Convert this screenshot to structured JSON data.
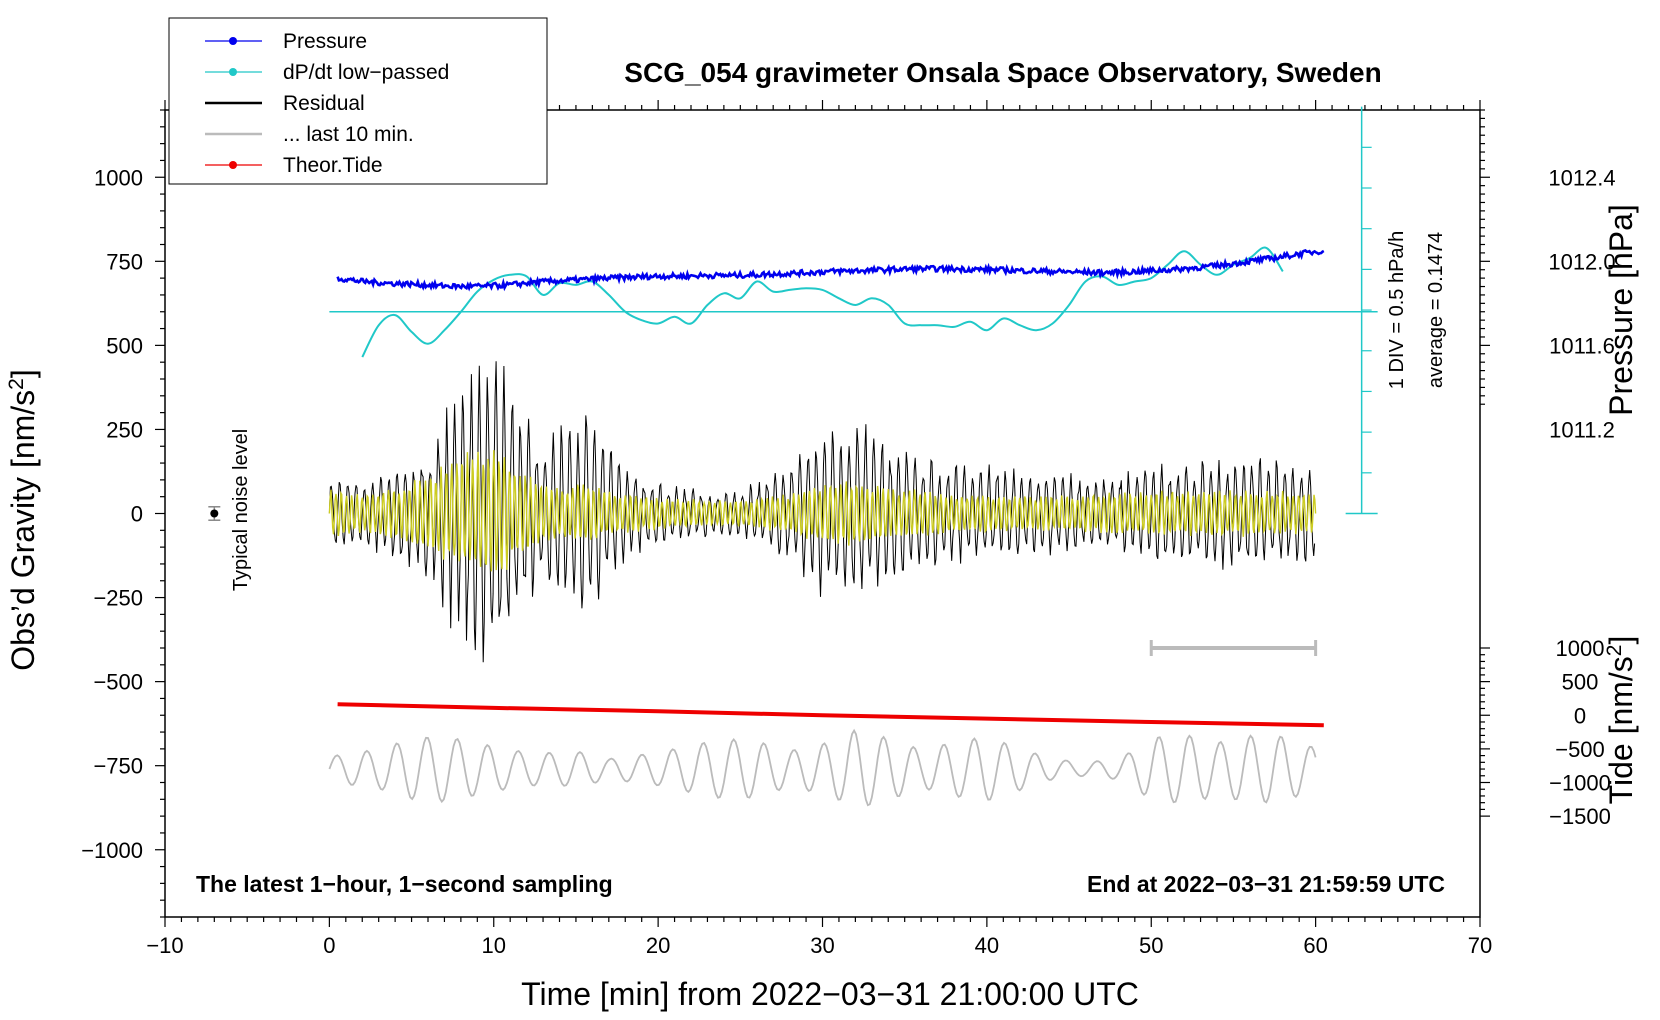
{
  "chart_data": {
    "type": "line",
    "title": "SCG_054 gravimeter Onsala Space Observatory, Sweden",
    "xlabel": "Time [min] from 2022−03−31 21:00:00 UTC",
    "ylabel_left": "Obs’d Gravity [nm/s",
    "ylabel_left_sup": "2",
    "ylabel_left_end": "]",
    "ylabel_right_pressure": "Pressure [hPa]",
    "ylabel_right_tide": "Tide [nm/s",
    "ylabel_right_tide_sup": "2",
    "ylabel_right_tide_end": "]",
    "xlim": [
      -10,
      70
    ],
    "ylim_left": [
      -1200,
      1200
    ],
    "x_ticks": [
      {
        "v": -10,
        "label": "−10"
      },
      {
        "v": 0,
        "label": "0"
      },
      {
        "v": 10,
        "label": "10"
      },
      {
        "v": 20,
        "label": "20"
      },
      {
        "v": 30,
        "label": "30"
      },
      {
        "v": 40,
        "label": "40"
      },
      {
        "v": 50,
        "label": "50"
      },
      {
        "v": 60,
        "label": "60"
      },
      {
        "v": 70,
        "label": "70"
      }
    ],
    "y_left_ticks": [
      {
        "v": 1000,
        "label": "1000"
      },
      {
        "v": 750,
        "label": "750"
      },
      {
        "v": 500,
        "label": "500"
      },
      {
        "v": 250,
        "label": "250"
      },
      {
        "v": 0,
        "label": "0"
      },
      {
        "v": -250,
        "label": "−250"
      },
      {
        "v": -500,
        "label": "−500"
      },
      {
        "v": -750,
        "label": "−750"
      },
      {
        "v": -1000,
        "label": "−1000"
      }
    ],
    "pressure_axis": {
      "offset_gravity": 750,
      "offset_pressure": 1012.0,
      "gravity_per_hpa": 625,
      "range_gravity": [
        320,
        1200
      ],
      "ticks": [
        {
          "v": 1012.4,
          "label": "1012.4"
        },
        {
          "v": 1012.0,
          "label": "1012.0"
        },
        {
          "v": 1011.6,
          "label": "1011.6"
        },
        {
          "v": 1011.2,
          "label": "1011.2"
        }
      ]
    },
    "tide_axis": {
      "offset_gravity": -600,
      "gravity_per_nms2": 0.2,
      "range_gravity": [
        -1200,
        200
      ],
      "ticks": [
        {
          "v": 1000,
          "label": "1000"
        },
        {
          "v": 500,
          "label": "500"
        },
        {
          "v": 0,
          "label": "0"
        },
        {
          "v": -500,
          "label": "−500"
        },
        {
          "v": -1000,
          "label": "−1000"
        },
        {
          "v": -1500,
          "label": "−1500"
        }
      ]
    },
    "dpdt_scale": {
      "x": 62.8,
      "baseline_gravity": 0,
      "top_gravity": 1210,
      "div_gravity": 121,
      "average_level_gravity": 600,
      "label_div": "1 DIV = 0.5 hPa/h",
      "label_avg": "average = 0.1474"
    },
    "last10_bar": {
      "x_start": 50,
      "x_end": 60,
      "y": -400
    },
    "noise_marker": {
      "x": -7,
      "y": 0,
      "err": 20,
      "label": "Typical noise level"
    },
    "bottom_left_text": "The latest 1−hour, 1−second sampling",
    "bottom_right_text": "End at 2022−03−31 21:59:59 UTC",
    "legend": [
      {
        "label": "Pressure",
        "color": "#0000ee",
        "marker": true
      },
      {
        "label": "dP/dt low−passed",
        "color": "#20c8c8",
        "marker": true
      },
      {
        "label": "Residual",
        "color": "#000000",
        "marker": false
      },
      {
        "label": "... last 10 min.",
        "color": "#bbbbbb",
        "marker": false
      },
      {
        "label": "Theor.Tide",
        "color": "#ee0000",
        "marker": true
      }
    ],
    "colors": {
      "pressure": "#0000ee",
      "dpdt": "#20c8c8",
      "residual": "#000000",
      "residual_filtered": "#cccc22",
      "last10": "#bbbbbb",
      "tide": "#ee0000"
    },
    "series": [
      {
        "name": "Pressure",
        "units": "gravity-plot",
        "x": [
          0.5,
          2,
          3.5,
          5,
          6.5,
          8,
          9.5,
          11,
          12.5,
          14,
          15.5,
          17,
          18.5,
          20,
          21.5,
          23,
          24.5,
          26,
          27.5,
          29,
          30.5,
          32,
          33.5,
          35,
          36.5,
          38,
          39.5,
          41,
          42.5,
          44,
          45.5,
          47,
          48.5,
          50,
          51.5,
          53,
          54.5,
          56,
          57.5,
          59,
          60.5
        ],
        "y": [
          700,
          690,
          685,
          682,
          678,
          675,
          676,
          680,
          688,
          692,
          696,
          700,
          703,
          706,
          706,
          708,
          708,
          710,
          713,
          716,
          720,
          722,
          724,
          727,
          728,
          727,
          726,
          724,
          722,
          720,
          718,
          716,
          718,
          722,
          726,
          732,
          740,
          750,
          760,
          772,
          782
        ]
      },
      {
        "name": "dP/dt low−passed",
        "units": "gravity-plot",
        "x": [
          2,
          3,
          4,
          5,
          6,
          7,
          8,
          9,
          10,
          11,
          12,
          13,
          14,
          15,
          16,
          17,
          18,
          19,
          20,
          21,
          22,
          23,
          24,
          25,
          26,
          27,
          28,
          29,
          30,
          31,
          32,
          33,
          34,
          35,
          36,
          37,
          38,
          39,
          40,
          41,
          42,
          43,
          44,
          45,
          46,
          47,
          48,
          49,
          50,
          51,
          52,
          53,
          54,
          55,
          56,
          57,
          58
        ],
        "y": [
          465,
          560,
          590,
          540,
          505,
          545,
          600,
          660,
          695,
          710,
          705,
          650,
          685,
          680,
          690,
          650,
          600,
          575,
          565,
          585,
          565,
          620,
          655,
          640,
          690,
          660,
          665,
          670,
          665,
          640,
          620,
          640,
          620,
          565,
          560,
          560,
          555,
          570,
          545,
          580,
          560,
          545,
          565,
          620,
          690,
          705,
          680,
          690,
          700,
          740,
          780,
          740,
          710,
          740,
          760,
          790,
          720
        ]
      },
      {
        "name": "Theor.Tide",
        "units": "gravity-plot",
        "x": [
          0.5,
          10,
          20,
          30,
          40,
          50,
          60.5
        ],
        "y": [
          -567,
          -578,
          -588,
          -600,
          -610,
          -620,
          -630
        ]
      }
    ],
    "residual_envelope": {
      "note": "amplitude envelopes (nm/s2) of the oscillating residual, filtered residual and last-10-min trace",
      "x": [
        0,
        2,
        4,
        6,
        7,
        8,
        9,
        10,
        11,
        12,
        13,
        14,
        15,
        16,
        17,
        18,
        20,
        22,
        24,
        26,
        28,
        29,
        30,
        31,
        32,
        33,
        34,
        36,
        38,
        40,
        42,
        44,
        46,
        48,
        50,
        52,
        54,
        56,
        58,
        60
      ],
      "residual_amp": [
        120,
        100,
        150,
        200,
        320,
        420,
        460,
        500,
        420,
        300,
        250,
        280,
        330,
        300,
        220,
        150,
        100,
        80,
        70,
        100,
        150,
        220,
        260,
        280,
        300,
        260,
        220,
        180,
        160,
        150,
        140,
        130,
        120,
        130,
        150,
        160,
        170,
        180,
        170,
        150
      ],
      "filtered_amp": [
        80,
        60,
        80,
        120,
        150,
        180,
        190,
        200,
        170,
        120,
        90,
        80,
        100,
        90,
        70,
        60,
        50,
        45,
        40,
        45,
        60,
        80,
        90,
        100,
        100,
        90,
        80,
        70,
        60,
        60,
        55,
        55,
        60,
        65,
        70,
        70,
        70,
        70,
        70,
        60
      ]
    },
    "last10_trace": {
      "x": [
        0,
        3,
        5,
        7,
        10,
        12,
        15,
        17,
        20,
        22,
        24,
        26,
        28,
        30,
        32,
        34,
        36,
        38,
        40,
        42,
        44,
        46,
        48,
        50,
        52,
        54,
        56,
        58,
        60
      ],
      "amp": [
        50,
        60,
        90,
        110,
        110,
        100,
        90,
        40,
        50,
        70,
        100,
        120,
        100,
        150,
        200,
        120,
        60,
        80,
        100,
        80,
        50,
        40,
        60,
        140,
        120,
        80,
        100,
        110,
        90
      ]
    }
  }
}
